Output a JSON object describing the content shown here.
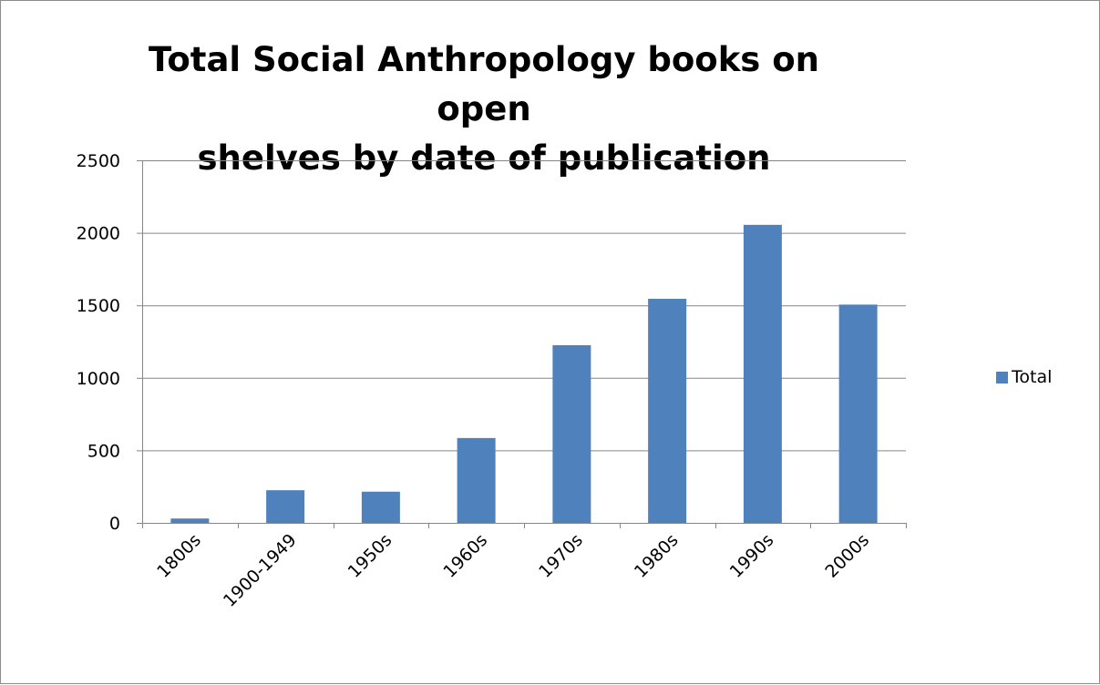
{
  "chart_data": {
    "type": "bar",
    "title": "Total Social Anthropology books on open shelves by date of publication",
    "title_lines": [
      "Total Social Anthropology books on open",
      "shelves by date of publication"
    ],
    "categories": [
      "1800s",
      "1900-1949",
      "1950s",
      "1960s",
      "1970s",
      "1980s",
      "1990s",
      "2000s"
    ],
    "series": [
      {
        "name": "Total",
        "color": "#4f81bd",
        "values": [
          30,
          225,
          215,
          585,
          1225,
          1545,
          2055,
          1505
        ]
      }
    ],
    "xlabel": "",
    "ylabel": "",
    "ylim": [
      0,
      2500
    ],
    "yticks": [
      0,
      500,
      1000,
      1500,
      2000,
      2500
    ],
    "grid": true,
    "legend_position": "right"
  }
}
